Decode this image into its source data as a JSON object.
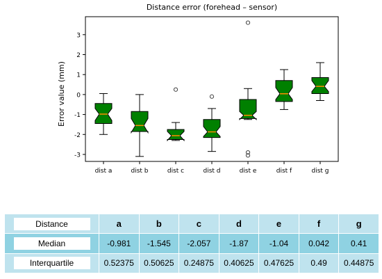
{
  "chart_data": {
    "type": "boxplot",
    "title": "Distance error (forehead – sensor)",
    "xlabel": "",
    "ylabel": "Error value (mm)",
    "ylim": [
      -3.35,
      3.9
    ],
    "yticks": [
      -3,
      -2,
      -1,
      0,
      1,
      2,
      3
    ],
    "notched": true,
    "grid": false,
    "colors": {
      "box_fill": "#008000",
      "median": "#ff8c00",
      "outlier": "#444444"
    },
    "categories": [
      "dist a",
      "dist b",
      "dist c",
      "dist d",
      "dist e",
      "dist f",
      "dist g"
    ],
    "boxes": [
      {
        "whisker_low": -2.0,
        "q1": -1.45,
        "median": -0.98,
        "q3": -0.45,
        "whisker_high": 0.05,
        "notch_low": -1.3,
        "notch_high": -0.7,
        "outliers": []
      },
      {
        "whisker_low": -3.1,
        "q1": -1.85,
        "median": -1.55,
        "q3": -0.85,
        "whisker_high": 0.0,
        "notch_low": -1.9,
        "notch_high": -1.2,
        "outliers": []
      },
      {
        "whisker_low": -2.3,
        "q1": -2.25,
        "median": -2.06,
        "q3": -1.75,
        "whisker_high": -1.4,
        "notch_low": -2.3,
        "notch_high": -1.85,
        "outliers": [
          0.25
        ]
      },
      {
        "whisker_low": -2.85,
        "q1": -2.15,
        "median": -1.87,
        "q3": -1.25,
        "whisker_high": -0.7,
        "notch_low": -2.1,
        "notch_high": -1.6,
        "outliers": [
          -0.1
        ]
      },
      {
        "whisker_low": -1.25,
        "q1": -1.2,
        "median": -1.04,
        "q3": -0.25,
        "whisker_high": 0.3,
        "notch_low": -1.25,
        "notch_high": -0.85,
        "outliers": [
          3.6,
          -2.9,
          -3.05
        ]
      },
      {
        "whisker_low": -0.75,
        "q1": -0.35,
        "median": 0.04,
        "q3": 0.7,
        "whisker_high": 1.25,
        "notch_low": -0.25,
        "notch_high": 0.35,
        "outliers": []
      },
      {
        "whisker_low": -0.3,
        "q1": 0.05,
        "median": 0.41,
        "q3": 0.85,
        "whisker_high": 1.6,
        "notch_low": 0.15,
        "notch_high": 0.7,
        "outliers": []
      }
    ]
  },
  "table": {
    "headers": [
      "Distance",
      "a",
      "b",
      "c",
      "d",
      "e",
      "f",
      "g"
    ],
    "rows": [
      {
        "label": "Median",
        "values": [
          "-0.981",
          "-1.545",
          "-2.057",
          "-1.87",
          "-1.04",
          "0.042",
          "0.41"
        ]
      },
      {
        "label": "Interquartile",
        "values": [
          "0.52375",
          "0.50625",
          "0.24875",
          "0.40625",
          "0.47625",
          "0.49",
          "0.44875"
        ]
      }
    ]
  }
}
